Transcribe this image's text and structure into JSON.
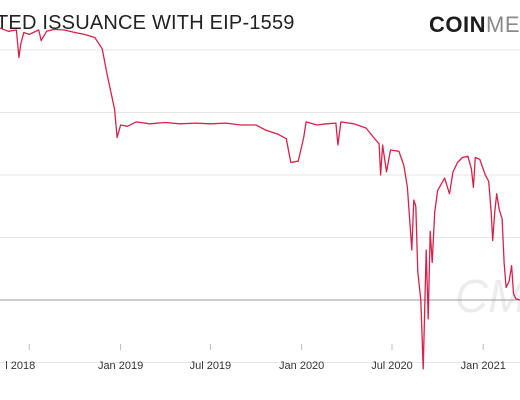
{
  "header": {
    "title": "TED ISSUANCE WITH EIP-1559",
    "logo_bold": "COIN",
    "logo_light": "ME"
  },
  "colors": {
    "line": "#d6224a",
    "grid": "#e6e6e6",
    "reference": "#999999"
  },
  "watermark": "CM",
  "chart_data": {
    "type": "line",
    "title": "TED ISSUANCE WITH EIP-1559",
    "xlabel": "",
    "ylabel": "",
    "x_range": [
      "2018-05-03",
      "2021-03-16"
    ],
    "y_range": [
      -1.6,
      4.8
    ],
    "grid": "horizontal",
    "ticks": [
      {
        "label": "l 2018",
        "date": "2018-07-01"
      },
      {
        "label": "Jan 2019",
        "date": "2019-01-01"
      },
      {
        "label": "Jul 2019",
        "date": "2019-07-01"
      },
      {
        "label": "Jan 2020",
        "date": "2020-01-01"
      },
      {
        "label": "Jul 2020",
        "date": "2020-07-01"
      },
      {
        "label": "Jan 2021",
        "date": "2021-01-01"
      }
    ],
    "reference_line": 0,
    "grid_values": [
      4,
      3,
      2,
      1,
      -1
    ],
    "series": [
      {
        "points": [
          [
            "2018-05-03",
            4.35
          ],
          [
            "2018-05-20",
            4.3
          ],
          [
            "2018-06-05",
            4.32
          ],
          [
            "2018-06-10",
            3.88
          ],
          [
            "2018-06-14",
            4.1
          ],
          [
            "2018-06-20",
            4.28
          ],
          [
            "2018-07-01",
            4.25
          ],
          [
            "2018-07-20",
            4.32
          ],
          [
            "2018-07-25",
            4.15
          ],
          [
            "2018-08-05",
            4.3
          ],
          [
            "2018-08-20",
            4.33
          ],
          [
            "2018-09-10",
            4.32
          ],
          [
            "2018-10-01",
            4.28
          ],
          [
            "2018-10-20",
            4.25
          ],
          [
            "2018-11-10",
            4.2
          ],
          [
            "2018-11-25",
            4.02
          ],
          [
            "2018-12-05",
            3.6
          ],
          [
            "2018-12-20",
            3.05
          ],
          [
            "2018-12-25",
            2.6
          ],
          [
            "2019-01-01",
            2.8
          ],
          [
            "2019-01-15",
            2.78
          ],
          [
            "2019-02-01",
            2.85
          ],
          [
            "2019-03-01",
            2.82
          ],
          [
            "2019-04-01",
            2.84
          ],
          [
            "2019-05-01",
            2.82
          ],
          [
            "2019-06-01",
            2.83
          ],
          [
            "2019-07-01",
            2.82
          ],
          [
            "2019-08-01",
            2.83
          ],
          [
            "2019-09-01",
            2.8
          ],
          [
            "2019-10-01",
            2.8
          ],
          [
            "2019-10-20",
            2.72
          ],
          [
            "2019-11-15",
            2.65
          ],
          [
            "2019-12-01",
            2.58
          ],
          [
            "2019-12-10",
            2.2
          ],
          [
            "2019-12-25",
            2.22
          ],
          [
            "2020-01-05",
            2.6
          ],
          [
            "2020-01-10",
            2.85
          ],
          [
            "2020-02-01",
            2.8
          ],
          [
            "2020-02-20",
            2.82
          ],
          [
            "2020-03-10",
            2.83
          ],
          [
            "2020-03-14",
            2.48
          ],
          [
            "2020-03-20",
            2.85
          ],
          [
            "2020-04-15",
            2.82
          ],
          [
            "2020-05-10",
            2.75
          ],
          [
            "2020-05-25",
            2.6
          ],
          [
            "2020-06-05",
            2.5
          ],
          [
            "2020-06-08",
            2.0
          ],
          [
            "2020-06-12",
            2.48
          ],
          [
            "2020-06-20",
            2.05
          ],
          [
            "2020-06-28",
            2.4
          ],
          [
            "2020-07-15",
            2.38
          ],
          [
            "2020-07-25",
            2.15
          ],
          [
            "2020-08-01",
            1.8
          ],
          [
            "2020-08-10",
            0.8
          ],
          [
            "2020-08-14",
            1.6
          ],
          [
            "2020-08-18",
            1.5
          ],
          [
            "2020-08-22",
            0.45
          ],
          [
            "2020-08-28",
            0.0
          ],
          [
            "2020-09-02",
            -1.1
          ],
          [
            "2020-09-08",
            0.8
          ],
          [
            "2020-09-12",
            -0.3
          ],
          [
            "2020-09-16",
            1.1
          ],
          [
            "2020-09-20",
            0.6
          ],
          [
            "2020-09-25",
            1.4
          ],
          [
            "2020-10-01",
            1.75
          ],
          [
            "2020-10-15",
            1.95
          ],
          [
            "2020-10-25",
            1.7
          ],
          [
            "2020-11-01",
            2.05
          ],
          [
            "2020-11-10",
            2.2
          ],
          [
            "2020-11-20",
            2.28
          ],
          [
            "2020-12-01",
            2.3
          ],
          [
            "2020-12-08",
            2.1
          ],
          [
            "2020-12-12",
            1.8
          ],
          [
            "2020-12-16",
            2.28
          ],
          [
            "2020-12-25",
            2.25
          ],
          [
            "2021-01-05",
            2.0
          ],
          [
            "2021-01-12",
            1.9
          ],
          [
            "2021-01-17",
            1.4
          ],
          [
            "2021-01-20",
            0.95
          ],
          [
            "2021-01-24",
            1.4
          ],
          [
            "2021-01-28",
            1.7
          ],
          [
            "2021-02-02",
            1.45
          ],
          [
            "2021-02-08",
            1.3
          ],
          [
            "2021-02-12",
            0.6
          ],
          [
            "2021-02-16",
            0.2
          ],
          [
            "2021-02-22",
            0.3
          ],
          [
            "2021-02-27",
            0.55
          ],
          [
            "2021-03-03",
            0.1
          ],
          [
            "2021-03-08",
            0.02
          ],
          [
            "2021-03-16",
            0.0
          ]
        ]
      }
    ]
  }
}
